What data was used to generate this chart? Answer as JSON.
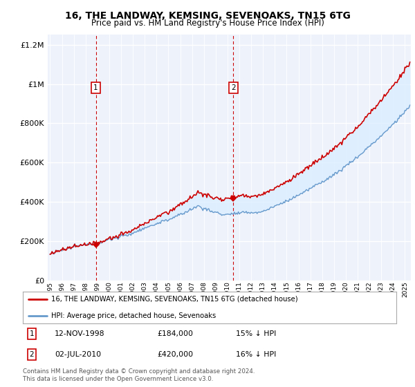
{
  "title": "16, THE LANDWAY, KEMSING, SEVENOAKS, TN15 6TG",
  "subtitle": "Price paid vs. HM Land Registry's House Price Index (HPI)",
  "legend_line1": "16, THE LANDWAY, KEMSING, SEVENOAKS, TN15 6TG (detached house)",
  "legend_line2": "HPI: Average price, detached house, Sevenoaks",
  "footnote": "Contains HM Land Registry data © Crown copyright and database right 2024.\nThis data is licensed under the Open Government Licence v3.0.",
  "purchase1_date": 1998.87,
  "purchase1_price": 184000,
  "purchase2_date": 2010.5,
  "purchase2_price": 420000,
  "red_line_color": "#cc0000",
  "blue_line_color": "#6699cc",
  "fill_color": "#ddeeff",
  "plot_bg": "#eef3fb",
  "ylim_min": 0,
  "ylim_max": 1250000,
  "xlim_start": 1994.8,
  "xlim_end": 2025.5
}
